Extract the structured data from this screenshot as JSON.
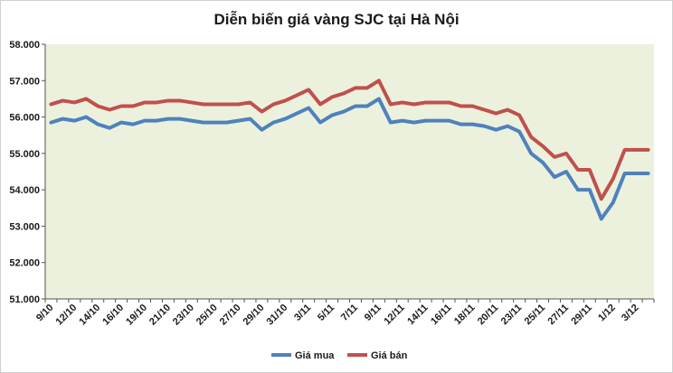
{
  "chart_data": {
    "type": "line",
    "title": "Diễn biến giá vàng SJC tại Hà Nội",
    "xlabel": "",
    "ylabel": "",
    "ylim": [
      51000,
      58000
    ],
    "ytick_values": [
      51000,
      52000,
      53000,
      54000,
      55000,
      56000,
      57000,
      58000
    ],
    "ytick_labels": [
      "51.000",
      "52.000",
      "53.000",
      "54.000",
      "55.000",
      "56.000",
      "57.000",
      "58.000"
    ],
    "x_tick_labels": [
      "9/10",
      "12/10",
      "14/10",
      "16/10",
      "19/10",
      "21/10",
      "23/10",
      "25/10",
      "27/10",
      "29/10",
      "31/10",
      "3/11",
      "5/11",
      "7/11",
      "9/11",
      "12/11",
      "14/11",
      "16/11",
      "18/11",
      "20/11",
      "23/11",
      "25/11",
      "27/11",
      "29/11",
      "1/12",
      "3/12"
    ],
    "point_count": 52,
    "grid": "none",
    "plot_background": "#ebf1dd",
    "legend_position": "bottom",
    "series": [
      {
        "name": "Giá mua",
        "color": "#4f81bd",
        "values": [
          55850,
          55950,
          55900,
          56000,
          55800,
          55700,
          55850,
          55800,
          55900,
          55900,
          55950,
          55950,
          55900,
          55850,
          55850,
          55850,
          55900,
          55950,
          55650,
          55850,
          55950,
          56100,
          56250,
          55850,
          56050,
          56150,
          56300,
          56300,
          56500,
          55850,
          55900,
          55850,
          55900,
          55900,
          55900,
          55800,
          55800,
          55750,
          55650,
          55750,
          55600,
          55000,
          54750,
          54350,
          54500,
          54000,
          54000,
          53200,
          53650,
          54450,
          54450,
          54450
        ]
      },
      {
        "name": "Giá bán",
        "color": "#c0504d",
        "values": [
          56350,
          56450,
          56400,
          56500,
          56300,
          56200,
          56300,
          56300,
          56400,
          56400,
          56450,
          56450,
          56400,
          56350,
          56350,
          56350,
          56350,
          56400,
          56150,
          56350,
          56450,
          56600,
          56750,
          56350,
          56550,
          56650,
          56800,
          56800,
          57000,
          56350,
          56400,
          56350,
          56400,
          56400,
          56400,
          56300,
          56300,
          56200,
          56100,
          56200,
          56050,
          55450,
          55200,
          54900,
          55000,
          54550,
          54550,
          53750,
          54300,
          55100,
          55100,
          55100
        ]
      }
    ]
  }
}
